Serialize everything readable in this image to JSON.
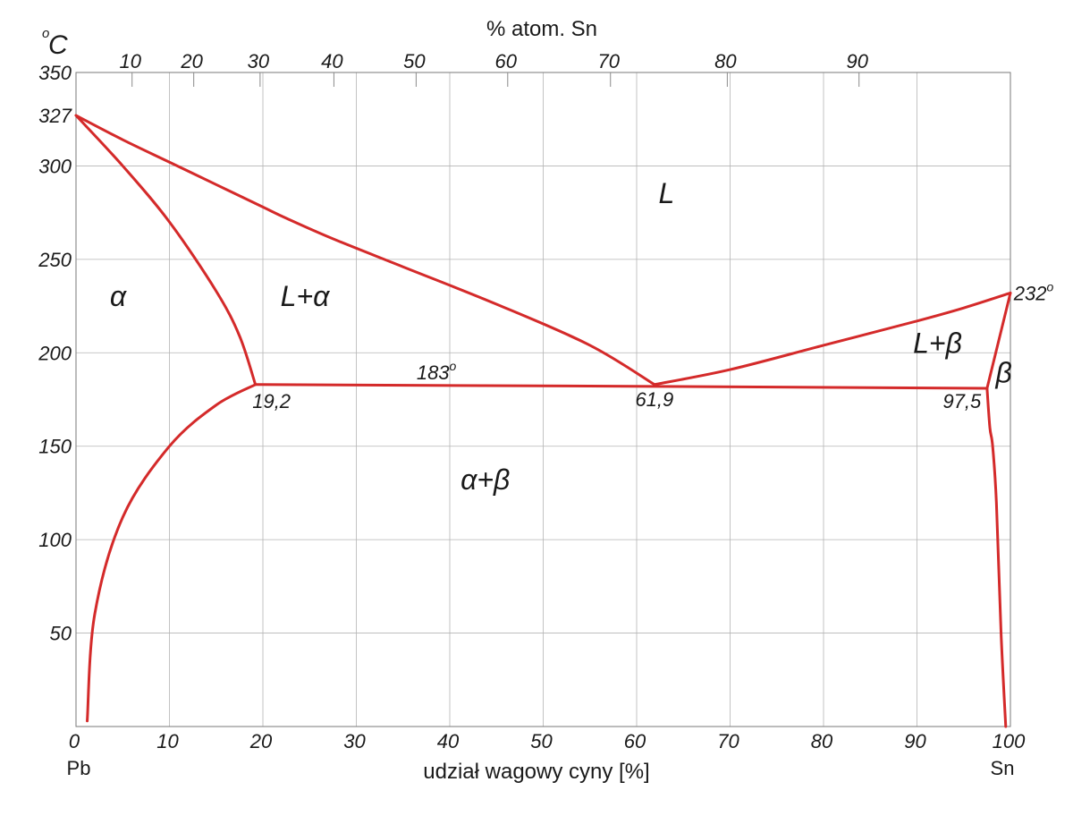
{
  "chart_data": {
    "type": "line",
    "title": "",
    "x_axis": {
      "label": "udział wagowy cyny [%]",
      "range": [
        0,
        100
      ],
      "ticks": [
        "0",
        "10",
        "20",
        "30",
        "40",
        "50",
        "60",
        "70",
        "80",
        "90",
        "100"
      ],
      "left_end_label": "Pb",
      "right_end_label": "Sn"
    },
    "top_axis": {
      "label": "% atom. Sn",
      "ticks": [
        {
          "label": "10",
          "wt": 6.0
        },
        {
          "label": "20",
          "wt": 12.6
        },
        {
          "label": "30",
          "wt": 19.7
        },
        {
          "label": "40",
          "wt": 27.6
        },
        {
          "label": "50",
          "wt": 36.4
        },
        {
          "label": "60",
          "wt": 46.2
        },
        {
          "label": "70",
          "wt": 57.2
        },
        {
          "label": "80",
          "wt": 69.7
        },
        {
          "label": "90",
          "wt": 83.8
        }
      ]
    },
    "y_axis": {
      "unit": "C",
      "unit_sup": "o",
      "range": [
        0,
        350
      ],
      "ticks": [
        "50",
        "100",
        "150",
        "200",
        "250",
        "300",
        "350"
      ],
      "extra_tick": {
        "label": "327",
        "value": 327
      }
    },
    "grid": true,
    "line_color": "#d42a2a",
    "series": [
      {
        "id": "liquidus-left",
        "points": [
          [
            0,
            327
          ],
          [
            5,
            314
          ],
          [
            10,
            302
          ],
          [
            15,
            290
          ],
          [
            20,
            278
          ],
          [
            22.5,
            272
          ],
          [
            27.5,
            261
          ],
          [
            35,
            246
          ],
          [
            45,
            226
          ],
          [
            55,
            204
          ],
          [
            61.9,
            183
          ]
        ]
      },
      {
        "id": "liquidus-right",
        "points": [
          [
            61.9,
            183
          ],
          [
            70,
            191
          ],
          [
            80,
            204
          ],
          [
            90,
            217
          ],
          [
            95,
            224
          ],
          [
            100,
            232
          ]
        ]
      },
      {
        "id": "solidus-alpha",
        "points": [
          [
            0,
            327
          ],
          [
            5,
            300
          ],
          [
            10,
            270
          ],
          [
            15,
            233
          ],
          [
            17.5,
            209
          ],
          [
            19.2,
            183
          ]
        ]
      },
      {
        "id": "eutectic-isotherm",
        "points": [
          [
            19.2,
            183
          ],
          [
            61.9,
            182
          ],
          [
            97.5,
            181
          ]
        ]
      },
      {
        "id": "solvus-alpha",
        "points": [
          [
            19.2,
            183
          ],
          [
            15,
            172
          ],
          [
            10,
            150
          ],
          [
            5,
            112
          ],
          [
            2,
            60
          ],
          [
            1.2,
            3
          ]
        ]
      },
      {
        "id": "solidus-beta",
        "points": [
          [
            97.5,
            181
          ],
          [
            100,
            232
          ]
        ]
      },
      {
        "id": "solvus-beta",
        "points": [
          [
            97.5,
            181
          ],
          [
            97.8,
            160
          ],
          [
            98.1,
            150
          ],
          [
            98.5,
            120
          ],
          [
            99,
            50
          ],
          [
            99.5,
            0
          ]
        ]
      }
    ],
    "phase_labels": [
      {
        "text": "α",
        "x": 4.5,
        "y": 225
      },
      {
        "text": "L+α",
        "x": 24.5,
        "y": 225
      },
      {
        "text": "L",
        "x": 63.2,
        "y": 280
      },
      {
        "text": "L+β",
        "x": 92.2,
        "y": 200
      },
      {
        "text": "β",
        "x": 99.3,
        "y": 184
      },
      {
        "text": "α+β",
        "x": 43.8,
        "y": 127
      }
    ],
    "point_labels": [
      {
        "text": "19,2",
        "sup": "",
        "x": 19.2,
        "y": 183
      },
      {
        "text": "61,9",
        "sup": "",
        "x": 61.9,
        "y": 183
      },
      {
        "text": "97,5",
        "sup": "",
        "x": 97.5,
        "y": 181
      },
      {
        "text": "183",
        "sup": "o",
        "x": 38,
        "y": 183
      },
      {
        "text": "232",
        "sup": "o",
        "x": 100,
        "y": 232
      }
    ]
  }
}
